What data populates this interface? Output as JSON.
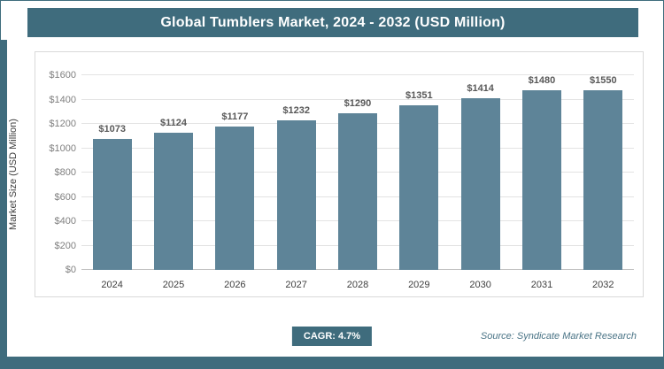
{
  "title": "Global Tumblers Market, 2024 - 2032 (USD Million)",
  "chart_data": {
    "type": "bar",
    "title": "Global Tumblers Market, 2024 - 2032 (USD Million)",
    "categories": [
      "2024",
      "2025",
      "2026",
      "2027",
      "2028",
      "2029",
      "2030",
      "2031",
      "2032"
    ],
    "values": [
      1073,
      1124,
      1177,
      1232,
      1290,
      1351,
      1414,
      1480,
      1550
    ],
    "value_labels": [
      "$1073",
      "$1124",
      "$1177",
      "$1232",
      "$1290",
      "$1351",
      "$1414",
      "$1480",
      "$1550"
    ],
    "xlabel": "",
    "ylabel": "Market Size (USD Million)",
    "ylim": [
      0,
      1600
    ],
    "ytick_step": 200,
    "ytick_labels": [
      "$0",
      "$200",
      "$400",
      "$600",
      "$800",
      "$1000",
      "$1200",
      "$1400",
      "$1600"
    ],
    "grid": true,
    "legend": "none",
    "bar_color": "#5e8498"
  },
  "footer": {
    "cagr_label": "CAGR: 4.7%",
    "source": "Source: Syndicate Market Research"
  },
  "colors": {
    "accent": "#3f6c7d",
    "bar": "#5e8498",
    "grid": "#e3e3e3",
    "tick_text": "#808080",
    "value_text": "#595959"
  }
}
